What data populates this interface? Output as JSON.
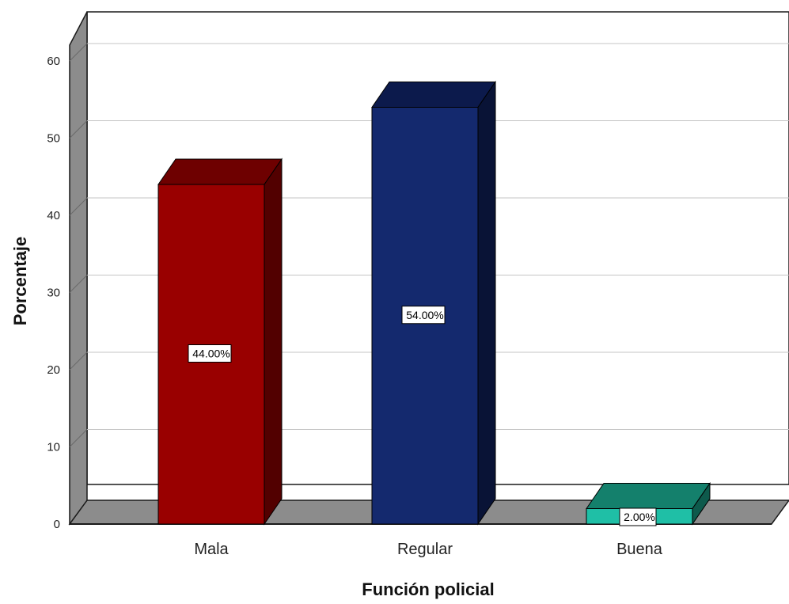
{
  "chart_data": {
    "type": "bar",
    "categories": [
      "Mala",
      "Regular",
      "Buena"
    ],
    "values": [
      44.0,
      54.0,
      2.0
    ],
    "data_labels": [
      "44.00%",
      "54.00%",
      "2.00%"
    ],
    "title": "",
    "xlabel": "Función policial",
    "ylabel": "Porcentaje",
    "ylim": [
      0,
      64
    ],
    "yticks": [
      0,
      10,
      20,
      30,
      40,
      50,
      60
    ],
    "grid": true,
    "three_d": true,
    "colors": {
      "bars": [
        "#990000",
        "#14296e",
        "#1fbfa6"
      ],
      "bar_tops": [
        "#6e0000",
        "#0c1a4c",
        "#14806c"
      ],
      "bar_sides": [
        "#520000",
        "#091336",
        "#0e5a4c"
      ],
      "floor": "#8c8c8c",
      "wall": "#8c8c8c",
      "gridline": "#c4c4c4",
      "frame": "#1a1a1a"
    }
  }
}
